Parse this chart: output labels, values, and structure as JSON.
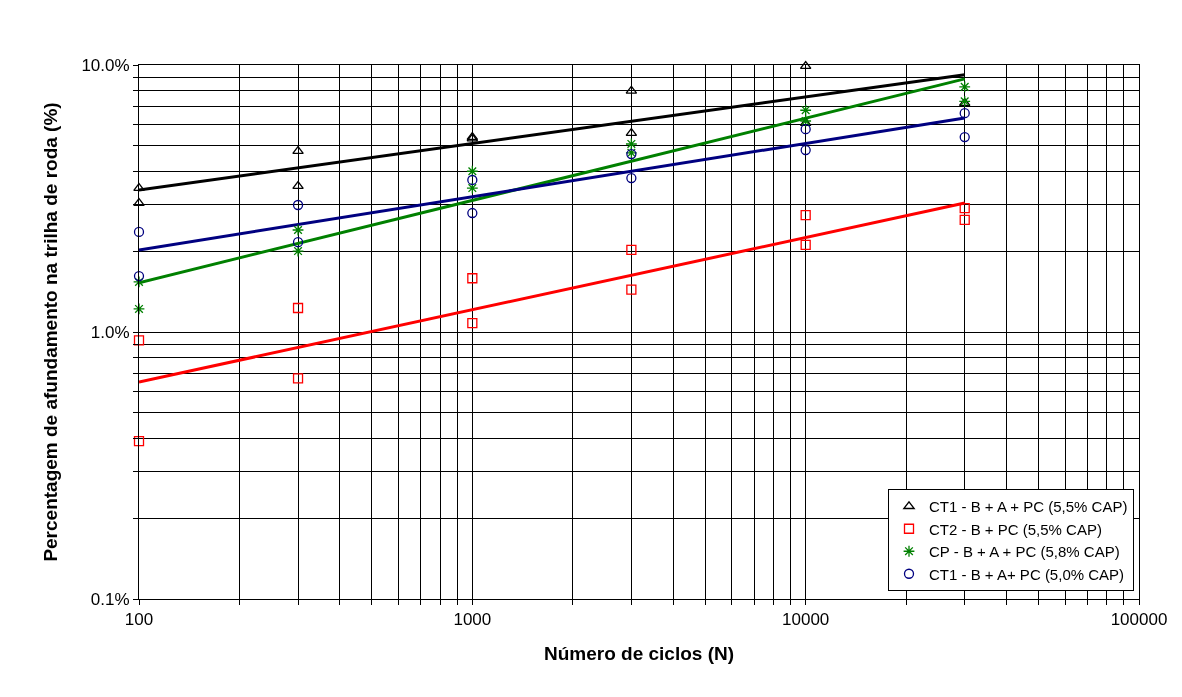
{
  "chart_data": {
    "type": "scatter",
    "xlabel": "Número de ciclos (N)",
    "ylabel": "Percentagem de afundamento na trilha de roda (%)",
    "log": "xy",
    "grid": true,
    "legend": "bottom right",
    "xlim": [
      100,
      100000
    ],
    "xticks": [
      100,
      {
        "value": 200,
        "label": null
      },
      {
        "value": 300,
        "label": null
      },
      {
        "value": 400,
        "label": null
      },
      {
        "value": 500,
        "label": null
      },
      {
        "value": 600,
        "label": null
      },
      {
        "value": 700,
        "label": null
      },
      {
        "value": 800,
        "label": null
      },
      {
        "value": 900,
        "label": null
      },
      1000,
      {
        "value": 2000,
        "label": null
      },
      {
        "value": 3000,
        "label": null
      },
      {
        "value": 4000,
        "label": null
      },
      {
        "value": 5000,
        "label": null
      },
      {
        "value": 6000,
        "label": null
      },
      {
        "value": 7000,
        "label": null
      },
      {
        "value": 8000,
        "label": null
      },
      {
        "value": 9000,
        "label": null
      },
      10000,
      {
        "value": 20000,
        "label": null
      },
      {
        "value": 30000,
        "label": null
      },
      {
        "value": 40000,
        "label": null
      },
      {
        "value": 50000,
        "label": null
      },
      {
        "value": 60000,
        "label": null
      },
      {
        "value": 70000,
        "label": null
      },
      {
        "value": 80000,
        "label": null
      },
      {
        "value": 90000,
        "label": null
      },
      100000
    ],
    "ylim": [
      0.1,
      10
    ],
    "yticks": [
      {
        "value": 0.1,
        "label": "0.1%"
      },
      {
        "value": 0.2,
        "label": null
      },
      {
        "value": 0.3,
        "label": null
      },
      {
        "value": 0.4,
        "label": null
      },
      {
        "value": 0.5,
        "label": null
      },
      {
        "value": 0.6,
        "label": null
      },
      {
        "value": 0.7,
        "label": null
      },
      {
        "value": 0.8,
        "label": null
      },
      {
        "value": 0.9,
        "label": null
      },
      {
        "value": 1,
        "label": "1.0%"
      },
      {
        "value": 2,
        "label": null
      },
      {
        "value": 3,
        "label": null
      },
      {
        "value": 4,
        "label": null
      },
      {
        "value": 5,
        "label": null
      },
      {
        "value": 6,
        "label": null
      },
      {
        "value": 7,
        "label": null
      },
      {
        "value": 8,
        "label": null
      },
      {
        "value": 9,
        "label": null
      },
      {
        "value": 10,
        "label": "10.0%"
      }
    ],
    "series": [
      {
        "type": "line",
        "color": "#000000",
        "x": [
          100,
          30000
        ],
        "values": [
          3.4,
          9.2
        ]
      },
      {
        "type": "line",
        "color": "#ff0000",
        "x": [
          100,
          30000
        ],
        "values": [
          0.65,
          3.04
        ]
      },
      {
        "type": "line",
        "color": "#008000",
        "x": [
          100,
          30000
        ],
        "values": [
          1.53,
          8.87
        ]
      },
      {
        "type": "line",
        "color": "#000080",
        "x": [
          100,
          30000
        ],
        "values": [
          2.03,
          6.33
        ]
      },
      {
        "name": "CT1 - B + A + PC (5,5% CAP)",
        "color": "#000000",
        "marker": "triangle",
        "x": [
          100,
          100,
          300,
          300,
          1000,
          1000,
          3000,
          3000,
          10000,
          10000,
          30000
        ],
        "values": [
          3.46,
          3.04,
          4.76,
          3.52,
          5.37,
          5.3,
          8.0,
          5.56,
          9.9,
          6.06,
          7.2
        ]
      },
      {
        "name": "CT2 - B + PC (5,5% CAP)",
        "color": "#ff0000",
        "marker": "square",
        "x": [
          100,
          100,
          300,
          300,
          1000,
          1000,
          3000,
          3000,
          10000,
          10000,
          30000,
          30000
        ],
        "values": [
          0.93,
          0.39,
          1.23,
          0.67,
          1.59,
          1.08,
          2.03,
          1.44,
          2.74,
          2.12,
          2.91,
          2.63
        ]
      },
      {
        "name": "CP - B + A + PC (5,8% CAP)",
        "color": "#008000",
        "marker": "cross",
        "x": [
          100,
          100,
          300,
          300,
          1000,
          1000,
          3000,
          3000,
          10000,
          10000,
          30000,
          30000
        ],
        "values": [
          1.54,
          1.22,
          2.41,
          2.01,
          4.0,
          3.46,
          5.06,
          4.69,
          6.77,
          6.17,
          8.28,
          7.31
        ]
      },
      {
        "name": "CT1 - B + A+ PC (5,0% CAP)",
        "color": "#000080",
        "marker": "circle",
        "x": [
          100,
          100,
          300,
          300,
          1000,
          1000,
          3000,
          3000,
          10000,
          10000,
          30000,
          30000
        ],
        "values": [
          2.37,
          1.62,
          2.99,
          2.17,
          3.71,
          2.79,
          4.64,
          3.77,
          5.75,
          4.8,
          6.6,
          5.37
        ]
      }
    ]
  }
}
